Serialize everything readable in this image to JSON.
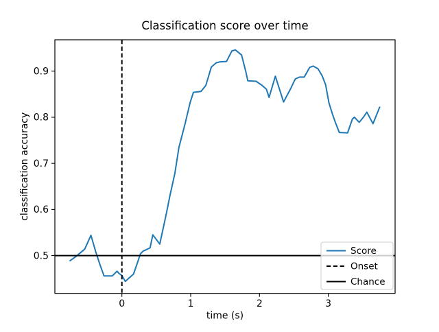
{
  "figure": {
    "background": "#ffffff",
    "accent_color": "#1f77b4",
    "axis_color": "#000000"
  },
  "chart_data": {
    "type": "line",
    "title": "Classification score over time",
    "xlabel": "time (s)",
    "ylabel": "classification accuracy",
    "xlim": [
      -0.974,
      3.971
    ],
    "ylim": [
      0.418,
      0.968
    ],
    "xticks": [
      0,
      1,
      2,
      3
    ],
    "yticks": [
      0.5,
      0.6,
      0.7,
      0.8,
      0.9
    ],
    "grid": false,
    "legend": {
      "position": "lower right",
      "entries": [
        {
          "label": "Score",
          "color": "#1f77b4",
          "style": "solid"
        },
        {
          "label": "Onset",
          "color": "#000000",
          "style": "dashed"
        },
        {
          "label": "Chance",
          "color": "#000000",
          "style": "solid"
        }
      ]
    },
    "series": [
      {
        "name": "Score",
        "kind": "curve",
        "color": "#1f77b4",
        "x": [
          -0.76,
          -0.66,
          -0.54,
          -0.45,
          -0.38,
          -0.32,
          -0.26,
          -0.14,
          -0.07,
          -0.04,
          0.0,
          0.05,
          0.11,
          0.17,
          0.22,
          0.27,
          0.31,
          0.36,
          0.41,
          0.45,
          0.55,
          0.6,
          0.65,
          0.7,
          0.77,
          0.83,
          0.85,
          0.92,
          0.99,
          1.04,
          1.15,
          1.22,
          1.3,
          1.37,
          1.42,
          1.52,
          1.6,
          1.65,
          1.74,
          1.8,
          1.83,
          1.95,
          2.03,
          2.1,
          2.14,
          2.23,
          2.35,
          2.45,
          2.52,
          2.58,
          2.65,
          2.73,
          2.78,
          2.85,
          2.91,
          2.96,
          3.01,
          3.06,
          3.11,
          3.16,
          3.28,
          3.35,
          3.38,
          3.45,
          3.51,
          3.56,
          3.65,
          3.75
        ],
        "y": [
          0.488,
          0.499,
          0.514,
          0.544,
          0.508,
          0.481,
          0.456,
          0.456,
          0.466,
          0.461,
          0.457,
          0.444,
          0.452,
          0.46,
          0.482,
          0.504,
          0.51,
          0.513,
          0.517,
          0.545,
          0.525,
          0.559,
          0.594,
          0.631,
          0.678,
          0.735,
          0.747,
          0.787,
          0.831,
          0.854,
          0.856,
          0.869,
          0.909,
          0.918,
          0.92,
          0.921,
          0.944,
          0.946,
          0.935,
          0.9,
          0.879,
          0.878,
          0.87,
          0.861,
          0.843,
          0.889,
          0.833,
          0.861,
          0.883,
          0.887,
          0.887,
          0.908,
          0.911,
          0.905,
          0.89,
          0.871,
          0.831,
          0.807,
          0.786,
          0.767,
          0.766,
          0.796,
          0.8,
          0.789,
          0.8,
          0.811,
          0.786,
          0.823
        ]
      },
      {
        "name": "Onset",
        "kind": "vline",
        "color": "#000000",
        "style": "dashed",
        "x": 0
      },
      {
        "name": "Chance",
        "kind": "hline",
        "color": "#000000",
        "style": "solid",
        "y": 0.5
      }
    ]
  }
}
